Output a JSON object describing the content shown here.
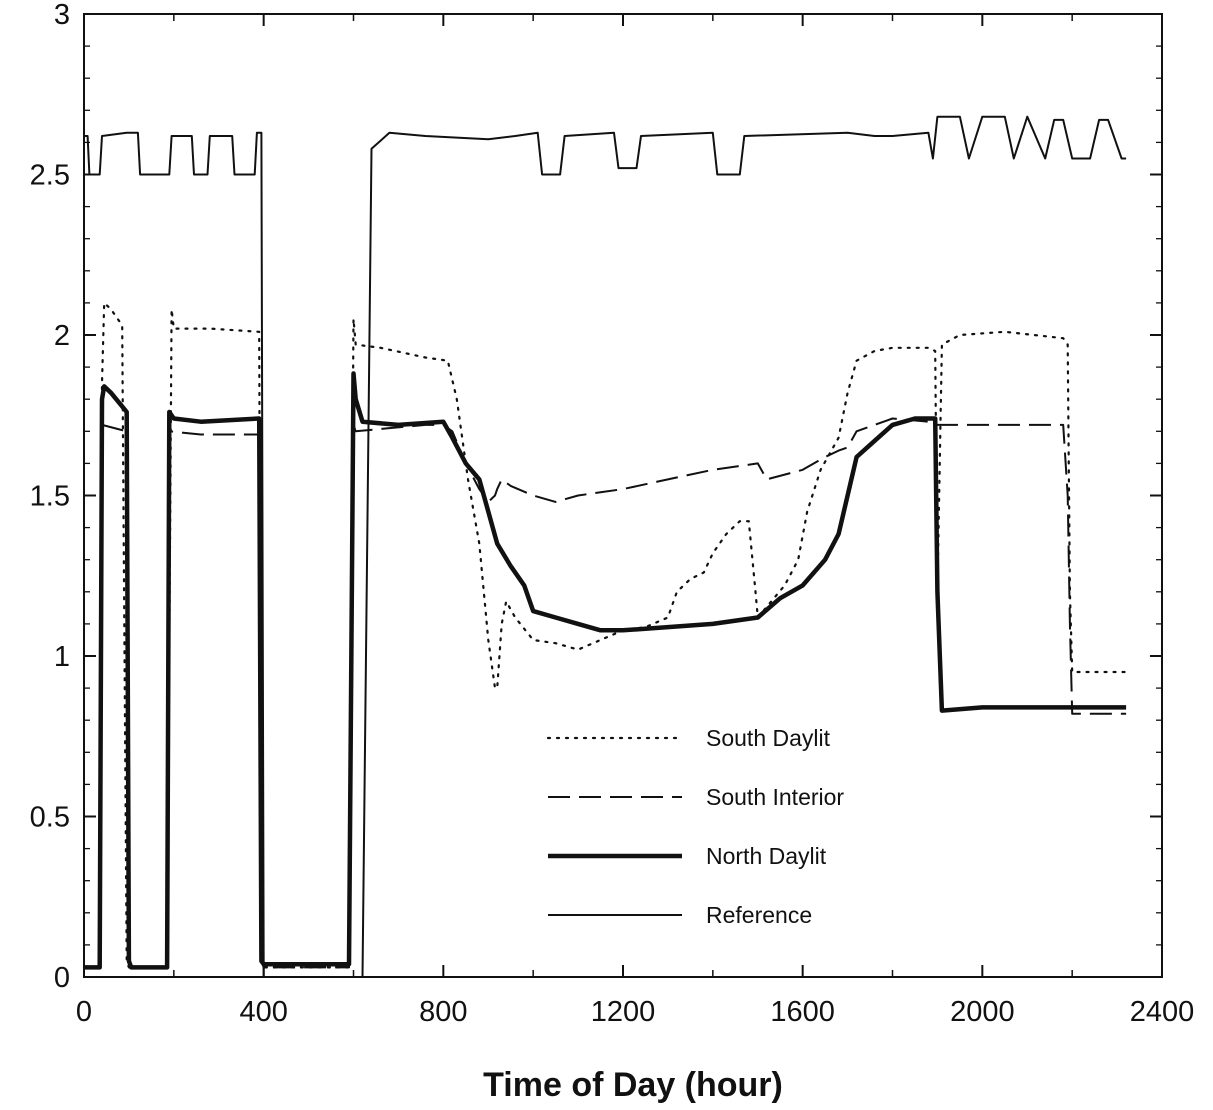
{
  "chart_data": {
    "type": "line",
    "title": "",
    "xlabel": "Time of Day (hour)",
    "ylabel": "",
    "xlim": [
      0,
      2400
    ],
    "ylim": [
      0,
      3
    ],
    "xticks": [
      0,
      400,
      800,
      1200,
      1600,
      2000,
      2400
    ],
    "xtick_labels": [
      "0",
      "400",
      "800",
      "1200",
      "1600",
      "2000",
      "2400"
    ],
    "yticks": [
      0,
      0.5,
      1,
      1.5,
      2,
      2.5,
      3
    ],
    "ytick_labels": [
      "0",
      "0.5",
      "1",
      "1.5",
      "2",
      "2.5",
      "3"
    ],
    "grid": false,
    "legend_position": "lower-center",
    "series": [
      {
        "name": "South Daylit",
        "style": "dotted",
        "x": [
          0,
          35,
          40,
          45,
          60,
          85,
          95,
          100,
          105,
          185,
          195,
          200,
          260,
          280,
          390,
          395,
          400,
          405,
          590,
          600,
          605,
          660,
          760,
          810,
          830,
          855,
          880,
          900,
          915,
          920,
          930,
          940,
          960,
          1000,
          1050,
          1100,
          1150,
          1200,
          1250,
          1300,
          1320,
          1350,
          1380,
          1400,
          1430,
          1460,
          1480,
          1495,
          1500,
          1560,
          1590,
          1610,
          1640,
          1680,
          1700,
          1720,
          1760,
          1800,
          1880,
          1895,
          1900,
          1910,
          1950,
          2050,
          2180,
          2190,
          2195,
          2200,
          2230,
          2320
        ],
        "y": [
          0.03,
          0.03,
          1.85,
          2.1,
          2.08,
          2.03,
          0.05,
          0.03,
          0.03,
          0.03,
          2.08,
          2.02,
          2.02,
          2.02,
          2.01,
          0.05,
          0.03,
          0.03,
          0.03,
          2.05,
          1.97,
          1.96,
          1.93,
          1.92,
          1.8,
          1.55,
          1.35,
          1.05,
          0.9,
          0.9,
          1.1,
          1.17,
          1.12,
          1.05,
          1.04,
          1.02,
          1.05,
          1.08,
          1.09,
          1.12,
          1.2,
          1.24,
          1.26,
          1.32,
          1.38,
          1.42,
          1.42,
          1.2,
          1.12,
          1.22,
          1.3,
          1.45,
          1.58,
          1.68,
          1.82,
          1.92,
          1.95,
          1.96,
          1.96,
          1.95,
          1.2,
          1.97,
          2.0,
          2.01,
          1.99,
          1.97,
          1.2,
          0.95,
          0.95,
          0.95
        ]
      },
      {
        "name": "South Interior",
        "style": "dashed",
        "x": [
          0,
          35,
          40,
          95,
          100,
          105,
          185,
          190,
          260,
          390,
          395,
          400,
          405,
          590,
          600,
          605,
          680,
          760,
          800,
          820,
          850,
          880,
          900,
          915,
          920,
          930,
          950,
          1000,
          1050,
          1100,
          1150,
          1200,
          1300,
          1400,
          1500,
          1520,
          1600,
          1650,
          1680,
          1700,
          1720,
          1760,
          1800,
          1880,
          1895,
          1900,
          2000,
          2180,
          2190,
          2195,
          2200,
          2230,
          2320
        ],
        "y": [
          0.03,
          0.03,
          1.72,
          1.7,
          0.05,
          0.03,
          0.03,
          1.7,
          1.69,
          1.69,
          0.05,
          0.03,
          0.03,
          0.03,
          1.72,
          1.7,
          1.71,
          1.72,
          1.72,
          1.7,
          1.6,
          1.52,
          1.48,
          1.5,
          1.52,
          1.55,
          1.53,
          1.5,
          1.48,
          1.5,
          1.51,
          1.52,
          1.55,
          1.58,
          1.6,
          1.55,
          1.58,
          1.62,
          1.64,
          1.65,
          1.7,
          1.72,
          1.74,
          1.73,
          1.72,
          1.72,
          1.72,
          1.72,
          1.5,
          1.1,
          0.82,
          0.82,
          0.82
        ]
      },
      {
        "name": "North Daylit",
        "style": "thick",
        "x": [
          0,
          35,
          40,
          45,
          60,
          95,
          100,
          105,
          185,
          190,
          200,
          260,
          390,
          395,
          400,
          405,
          590,
          600,
          605,
          620,
          700,
          800,
          820,
          850,
          880,
          900,
          920,
          950,
          980,
          1000,
          1050,
          1100,
          1150,
          1200,
          1300,
          1400,
          1500,
          1550,
          1600,
          1650,
          1680,
          1700,
          1720,
          1760,
          1800,
          1850,
          1895,
          1900,
          1910,
          2000,
          2100,
          2200,
          2320
        ],
        "y": [
          0.03,
          0.03,
          1.8,
          1.84,
          1.82,
          1.76,
          0.05,
          0.03,
          0.03,
          1.76,
          1.74,
          1.73,
          1.74,
          0.05,
          0.04,
          0.04,
          0.04,
          1.88,
          1.8,
          1.73,
          1.72,
          1.73,
          1.68,
          1.6,
          1.55,
          1.45,
          1.35,
          1.28,
          1.22,
          1.14,
          1.12,
          1.1,
          1.08,
          1.08,
          1.09,
          1.1,
          1.12,
          1.18,
          1.22,
          1.3,
          1.38,
          1.5,
          1.62,
          1.67,
          1.72,
          1.74,
          1.74,
          1.2,
          0.83,
          0.84,
          0.84,
          0.84,
          0.84
        ]
      },
      {
        "name": "Reference",
        "style": "solid",
        "x": [
          0,
          8,
          12,
          35,
          40,
          95,
          100,
          120,
          125,
          190,
          195,
          240,
          245,
          275,
          280,
          330,
          335,
          380,
          385,
          395,
          400,
          620,
          640,
          680,
          760,
          900,
          960,
          1010,
          1020,
          1060,
          1070,
          1180,
          1190,
          1230,
          1240,
          1400,
          1410,
          1460,
          1470,
          1700,
          1760,
          1800,
          1880,
          1890,
          1900,
          1950,
          1970,
          2000,
          2050,
          2070,
          2100,
          2140,
          2160,
          2180,
          2200,
          2240,
          2260,
          2280,
          2310,
          2320
        ],
        "y": [
          2.62,
          2.62,
          2.5,
          2.5,
          2.62,
          2.63,
          2.63,
          2.63,
          2.5,
          2.5,
          2.62,
          2.62,
          2.5,
          2.5,
          2.62,
          2.62,
          2.5,
          2.5,
          2.63,
          2.63,
          0.0,
          0.0,
          2.58,
          2.63,
          2.62,
          2.61,
          2.62,
          2.63,
          2.5,
          2.5,
          2.62,
          2.63,
          2.52,
          2.52,
          2.62,
          2.63,
          2.5,
          2.5,
          2.62,
          2.63,
          2.62,
          2.62,
          2.63,
          2.55,
          2.68,
          2.68,
          2.55,
          2.68,
          2.68,
          2.55,
          2.68,
          2.55,
          2.67,
          2.67,
          2.55,
          2.55,
          2.67,
          2.67,
          2.55,
          2.55
        ]
      }
    ]
  }
}
